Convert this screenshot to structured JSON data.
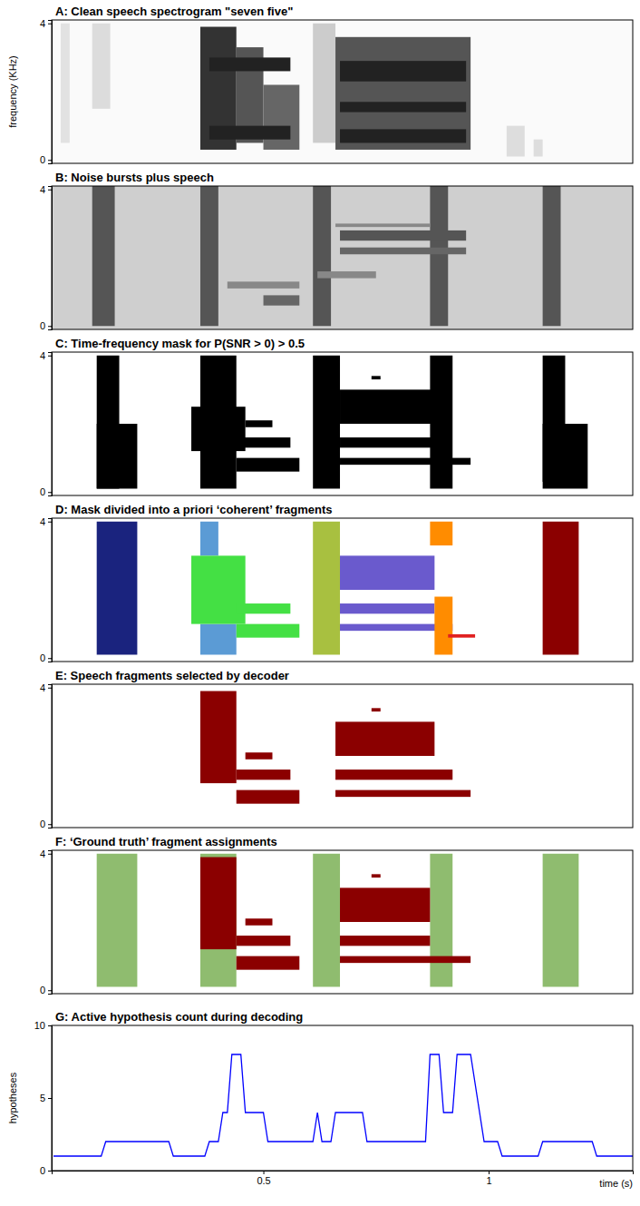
{
  "chart_data": [
    {
      "type": "heatmap",
      "title": "A:  Clean speech spectrogram \"seven five\"",
      "y_label": "frequency (KHz)",
      "xlim": [
        0.03,
        1.32
      ],
      "ylim": [
        -0.1,
        4.1
      ],
      "yticks": [
        0,
        4
      ],
      "tick_labels": "y",
      "cells": [
        [
          0.05,
          0.07,
          0.5,
          4.0
        ],
        [
          0.12,
          0.16,
          1.5,
          4.0
        ],
        [
          0.36,
          0.44,
          0.3,
          3.9
        ],
        [
          0.44,
          0.5,
          0.5,
          3.3
        ],
        [
          0.5,
          0.58,
          0.3,
          2.2
        ],
        [
          0.61,
          0.66,
          0.5,
          4.0
        ],
        [
          0.66,
          0.96,
          0.3,
          3.6
        ],
        [
          0.67,
          0.95,
          2.3,
          2.9
        ],
        [
          0.67,
          0.95,
          1.4,
          1.7
        ],
        [
          0.67,
          0.95,
          0.5,
          0.9
        ],
        [
          0.38,
          0.56,
          2.6,
          3.0
        ],
        [
          0.38,
          0.56,
          0.6,
          1.0
        ],
        [
          1.04,
          1.08,
          0.1,
          1.0
        ],
        [
          1.1,
          1.12,
          0.1,
          0.6
        ]
      ],
      "colors": [
        "#e2e2e2",
        "#dcdcdc",
        "#333333",
        "#555555",
        "#666666",
        "#cccccc",
        "#555555",
        "#222222",
        "#222222",
        "#222222",
        "#222222",
        "#222222",
        "#dddddd",
        "#dddddd"
      ]
    },
    {
      "type": "heatmap",
      "title": "B:  Noise bursts plus speech",
      "xlim": [
        0.03,
        1.32
      ],
      "ylim": [
        -0.1,
        4.1
      ],
      "yticks": [
        0,
        4
      ],
      "tick_labels": "y",
      "cells": [
        [
          0.12,
          0.17,
          0.0,
          4.1
        ],
        [
          0.36,
          0.4,
          0.0,
          4.1
        ],
        [
          0.61,
          0.65,
          0.0,
          4.1
        ],
        [
          0.87,
          0.91,
          0.0,
          4.1
        ],
        [
          1.12,
          1.16,
          0.0,
          4.1
        ],
        [
          0.67,
          0.95,
          2.5,
          2.8
        ],
        [
          0.67,
          0.95,
          2.1,
          2.3
        ],
        [
          0.66,
          0.87,
          2.9,
          3.0
        ],
        [
          0.62,
          0.75,
          1.4,
          1.6
        ],
        [
          0.42,
          0.58,
          1.1,
          1.3
        ],
        [
          0.5,
          0.58,
          0.6,
          0.9
        ]
      ],
      "colors": [
        "#555555",
        "#555555",
        "#555555",
        "#555555",
        "#555555",
        "#555555",
        "#666666",
        "#888888",
        "#888888",
        "#888888",
        "#666666"
      ]
    },
    {
      "type": "heatmap",
      "title": "C:  Time-frequency mask for P(SNR > 0) > 0.5",
      "xlim": [
        0.03,
        1.32
      ],
      "ylim": [
        -0.1,
        4.1
      ],
      "yticks": [
        0,
        4
      ],
      "tick_labels": "y",
      "cells": [
        [
          0.13,
          0.18,
          0.1,
          4.0
        ],
        [
          0.13,
          0.22,
          0.1,
          2.0
        ],
        [
          0.36,
          0.44,
          0.1,
          4.0
        ],
        [
          0.34,
          0.46,
          1.2,
          2.5
        ],
        [
          0.44,
          0.58,
          0.6,
          1.0
        ],
        [
          0.44,
          0.56,
          1.3,
          1.6
        ],
        [
          0.46,
          0.52,
          1.9,
          2.1
        ],
        [
          0.61,
          0.67,
          0.1,
          4.0
        ],
        [
          0.67,
          0.88,
          2.0,
          3.0
        ],
        [
          0.67,
          0.88,
          1.3,
          1.6
        ],
        [
          0.67,
          0.96,
          0.8,
          1.0
        ],
        [
          0.74,
          0.76,
          3.3,
          3.4
        ],
        [
          0.87,
          0.92,
          0.1,
          4.0
        ],
        [
          1.12,
          1.17,
          0.3,
          4.0
        ],
        [
          1.12,
          1.22,
          0.1,
          2.0
        ]
      ],
      "color": "#000000"
    },
    {
      "type": "heatmap",
      "title": "D:  Mask divided into a priori ‘coherent’ fragments",
      "xlim": [
        0.03,
        1.32
      ],
      "ylim": [
        -0.1,
        4.1
      ],
      "yticks": [
        0,
        4
      ],
      "tick_labels": "y",
      "cells": [
        [
          0.13,
          0.22,
          0.1,
          4.0
        ],
        [
          0.36,
          0.4,
          3.0,
          4.0
        ],
        [
          0.36,
          0.44,
          0.1,
          1.0
        ],
        [
          0.34,
          0.46,
          1.0,
          3.0
        ],
        [
          0.44,
          0.58,
          0.6,
          1.0
        ],
        [
          0.44,
          0.56,
          1.3,
          1.6
        ],
        [
          0.61,
          0.67,
          0.1,
          4.0
        ],
        [
          0.67,
          0.88,
          2.0,
          3.0
        ],
        [
          0.67,
          0.88,
          1.3,
          1.6
        ],
        [
          0.67,
          0.92,
          0.8,
          1.0
        ],
        [
          0.87,
          0.92,
          3.3,
          4.0
        ],
        [
          0.88,
          0.92,
          0.1,
          1.8
        ],
        [
          0.91,
          0.97,
          0.6,
          0.7
        ],
        [
          1.12,
          1.2,
          0.1,
          4.0
        ]
      ],
      "colors": [
        "#1a237e",
        "#5b9bd5",
        "#5b9bd5",
        "#44e044",
        "#44e044",
        "#44e044",
        "#a8c040",
        "#6a5acd",
        "#6a5acd",
        "#6a5acd",
        "#ff8c00",
        "#ff8c00",
        "#e02020",
        "#8b0000"
      ]
    },
    {
      "type": "heatmap",
      "title": "E:  Speech fragments selected by decoder",
      "xlim": [
        0.03,
        1.32
      ],
      "ylim": [
        -0.1,
        4.1
      ],
      "yticks": [
        0,
        4
      ],
      "tick_labels": "y",
      "cells": [
        [
          0.36,
          0.44,
          1.2,
          3.9
        ],
        [
          0.44,
          0.58,
          0.6,
          1.0
        ],
        [
          0.44,
          0.56,
          1.3,
          1.6
        ],
        [
          0.46,
          0.52,
          1.9,
          2.1
        ],
        [
          0.66,
          0.88,
          2.0,
          3.0
        ],
        [
          0.74,
          0.76,
          3.3,
          3.4
        ],
        [
          0.66,
          0.92,
          1.3,
          1.6
        ],
        [
          0.66,
          0.96,
          0.8,
          1.0
        ]
      ],
      "color": "#8b0000"
    },
    {
      "type": "heatmap",
      "title": "F:  ‘Ground truth’ fragment assignments",
      "xlim": [
        0.03,
        1.32
      ],
      "ylim": [
        -0.1,
        4.1
      ],
      "yticks": [
        0,
        4
      ],
      "tick_labels": "y",
      "cells": [
        [
          0.13,
          0.22,
          0.1,
          4.0
        ],
        [
          0.36,
          0.44,
          0.1,
          4.0
        ],
        [
          0.61,
          0.67,
          0.1,
          4.0
        ],
        [
          0.87,
          0.92,
          0.1,
          4.0
        ],
        [
          1.12,
          1.2,
          0.1,
          4.0
        ],
        [
          0.36,
          0.44,
          1.2,
          3.9
        ],
        [
          0.44,
          0.58,
          0.6,
          1.0
        ],
        [
          0.44,
          0.56,
          1.3,
          1.6
        ],
        [
          0.46,
          0.52,
          1.9,
          2.1
        ],
        [
          0.67,
          0.87,
          2.0,
          3.0
        ],
        [
          0.74,
          0.76,
          3.3,
          3.4
        ],
        [
          0.67,
          0.87,
          1.3,
          1.6
        ],
        [
          0.67,
          0.96,
          0.8,
          1.0
        ]
      ],
      "colors": [
        "#8fbc6f",
        "#8fbc6f",
        "#8fbc6f",
        "#8fbc6f",
        "#8fbc6f",
        "#8b0000",
        "#8b0000",
        "#8b0000",
        "#8b0000",
        "#8b0000",
        "#8b0000",
        "#8b0000",
        "#8b0000"
      ]
    },
    {
      "type": "line",
      "title": "G:  Active hypothesis count during decoding",
      "x_label": "time (s)",
      "y_label": "hypotheses",
      "xlim": [
        0.03,
        1.32
      ],
      "ylim": [
        0,
        10
      ],
      "xticks": [
        0.5,
        1
      ],
      "yticks": [
        0,
        5,
        10
      ],
      "color": "#0000ff",
      "x": [
        0.034,
        0.14,
        0.15,
        0.29,
        0.3,
        0.37,
        0.38,
        0.4,
        0.41,
        0.42,
        0.43,
        0.45,
        0.46,
        0.5,
        0.51,
        0.61,
        0.62,
        0.63,
        0.65,
        0.66,
        0.72,
        0.73,
        0.86,
        0.87,
        0.89,
        0.9,
        0.92,
        0.93,
        0.96,
        0.99,
        1.02,
        1.03,
        1.11,
        1.12,
        1.23,
        1.24,
        1.32
      ],
      "values": [
        1,
        1,
        2,
        2,
        1,
        1,
        2,
        2,
        4,
        4,
        8,
        8,
        4,
        4,
        2,
        2,
        4,
        2,
        2,
        4,
        4,
        2,
        2,
        8,
        8,
        4,
        4,
        8,
        8,
        2,
        2,
        1,
        1,
        2,
        2,
        1,
        1
      ]
    }
  ]
}
